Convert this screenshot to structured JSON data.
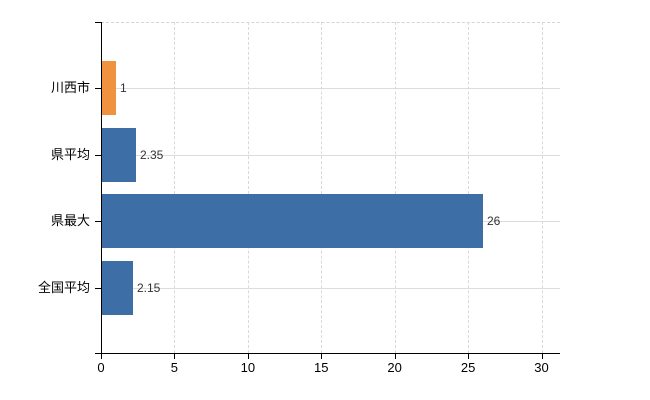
{
  "chart": {
    "background_color": "#ffffff",
    "axis_color": "#000000",
    "grid_color": "#d9d9d9",
    "value_label_color": "#333333",
    "tick_label_color": "#000000"
  },
  "chart_data": {
    "type": "bar",
    "orientation": "horizontal",
    "title": "",
    "categories": [
      "川西市",
      "県平均",
      "県最大",
      "全国平均"
    ],
    "values": [
      1,
      2.35,
      26,
      2.15
    ],
    "value_labels": [
      "1",
      "2.35",
      "26",
      "2.15"
    ],
    "bar_colors": [
      "#f0923e",
      "#3d6fa6",
      "#3d6fa6",
      "#3d6fa6"
    ],
    "x_tick_labels": [
      "0",
      "5",
      "10",
      "15",
      "20",
      "25",
      "30"
    ],
    "x_tick_values": [
      0,
      5,
      10,
      15,
      20,
      25,
      30
    ],
    "xlim": [
      0,
      30
    ],
    "grid": true,
    "legend_position": "none"
  }
}
